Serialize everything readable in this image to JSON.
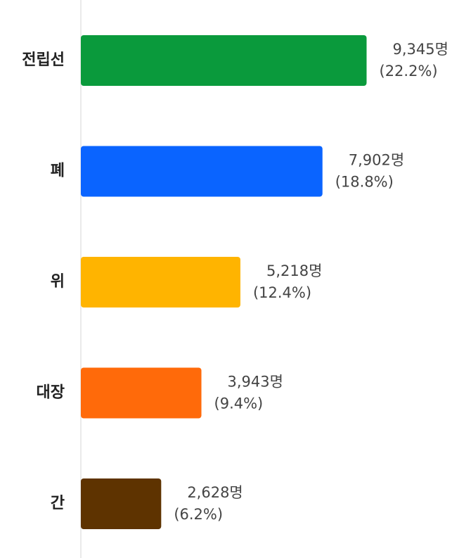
{
  "chart_data": {
    "type": "hbar",
    "categories": [
      "전립선",
      "폐",
      "위",
      "대장",
      "간"
    ],
    "values": [
      9345,
      7902,
      5218,
      3943,
      2628
    ],
    "value_labels": [
      "9,345명",
      "7,902명",
      "5,218명",
      "3,943명",
      "2,628명"
    ],
    "shares": [
      22.2,
      18.8,
      12.4,
      9.4,
      6.2
    ],
    "share_labels": [
      "(22.2%)",
      "(18.8%)",
      "(12.4%)",
      "(9.4%)",
      "(6.2%)"
    ],
    "colors": [
      "#0a9a3c",
      "#0a64ff",
      "#ffb400",
      "#ff6a0a",
      "#5e3300"
    ],
    "xlim": [
      0,
      12000
    ]
  }
}
